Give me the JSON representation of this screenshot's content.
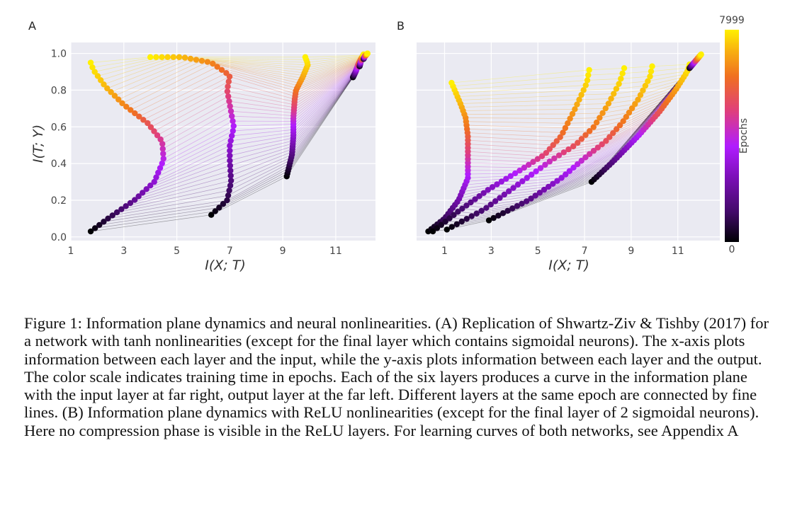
{
  "caption": "Figure 1: Information plane dynamics and neural nonlinearities. (A) Replication of Shwartz-Ziv & Tishby (2017) for a network with tanh nonlinearities (except for the final layer which contains sigmoidal neurons). The x-axis plots information between each layer and the input, while the y-axis plots information between each layer and the output. The color scale indicates training time in epochs. Each of the six layers produces a curve in the information plane with the input layer at far right, output layer at the far left. Different layers at the same epoch are connected by fine lines. (B) Information plane dynamics with ReLU nonlinearities (except for the final layer of 2 sigmoidal neurons). Here no compression phase is visible in the ReLU layers. For learning curves of both networks, see Appendix A",
  "colors": {
    "panel_bg": "#eaeaf2",
    "grid": "#ffffff",
    "cmap": [
      "#000004",
      "#420a68",
      "#7a0fb5",
      "#b01cff",
      "#e0407a",
      "#f07020",
      "#f8b010",
      "#fff000"
    ]
  },
  "chart_data": [
    {
      "panel": "A",
      "type": "scatter",
      "xlabel": "I(X; T)",
      "ylabel": "I(T; Y)",
      "xlim": [
        1,
        12.5
      ],
      "ylim": [
        -0.02,
        1.06
      ],
      "xticks": [
        1,
        3,
        5,
        7,
        9,
        11
      ],
      "yticks": [
        0.0,
        0.2,
        0.4,
        0.6,
        0.8,
        1.0
      ],
      "grid": true,
      "colorbar": "none",
      "series": [
        {
          "points": [
            [
              1.75,
              0.03
            ],
            [
              2.4,
              0.1
            ],
            [
              3.4,
              0.2
            ],
            [
              4.15,
              0.3
            ],
            [
              4.5,
              0.42
            ],
            [
              4.45,
              0.52
            ],
            [
              3.9,
              0.62
            ],
            [
              3.0,
              0.72
            ],
            [
              2.3,
              0.82
            ],
            [
              1.85,
              0.91
            ],
            [
              1.75,
              0.95
            ]
          ]
        },
        {
          "points": [
            [
              6.3,
              0.12
            ],
            [
              6.9,
              0.2
            ],
            [
              7.05,
              0.3
            ],
            [
              7.0,
              0.42
            ],
            [
              7.0,
              0.5
            ],
            [
              7.15,
              0.6
            ],
            [
              7.0,
              0.72
            ],
            [
              6.9,
              0.8
            ],
            [
              7.0,
              0.88
            ],
            [
              6.3,
              0.95
            ],
            [
              5.2,
              0.98
            ],
            [
              4.0,
              0.98
            ]
          ]
        },
        {
          "points": [
            [
              9.15,
              0.33
            ],
            [
              9.35,
              0.45
            ],
            [
              9.4,
              0.55
            ],
            [
              9.4,
              0.65
            ],
            [
              9.45,
              0.75
            ],
            [
              9.5,
              0.8
            ],
            [
              9.75,
              0.87
            ],
            [
              9.95,
              0.94
            ],
            [
              9.85,
              0.98
            ]
          ]
        },
        {
          "points": [
            [
              11.65,
              0.87
            ],
            [
              11.75,
              0.9
            ],
            [
              11.85,
              0.94
            ],
            [
              11.95,
              0.97
            ],
            [
              12.05,
              0.99
            ]
          ]
        },
        {
          "points": [
            [
              11.9,
              0.93
            ],
            [
              11.95,
              0.96
            ],
            [
              12.0,
              0.98
            ],
            [
              12.05,
              0.995
            ]
          ]
        },
        {
          "points": [
            [
              12.05,
              0.97
            ],
            [
              12.1,
              0.985
            ],
            [
              12.2,
              1.0
            ]
          ]
        }
      ]
    },
    {
      "panel": "B",
      "type": "scatter",
      "xlabel": "I(X; T)",
      "ylabel": "",
      "xlim": [
        -0.2,
        12.8
      ],
      "ylim": [
        -0.02,
        1.06
      ],
      "xticks": [
        1,
        3,
        5,
        7,
        9,
        11
      ],
      "yticks": [],
      "grid": true,
      "colorbar": "right",
      "series": [
        {
          "points": [
            [
              0.3,
              0.03
            ],
            [
              1.0,
              0.1
            ],
            [
              1.6,
              0.2
            ],
            [
              2.0,
              0.32
            ],
            [
              2.0,
              0.45
            ],
            [
              2.0,
              0.55
            ],
            [
              1.9,
              0.65
            ],
            [
              1.7,
              0.72
            ],
            [
              1.5,
              0.78
            ],
            [
              1.3,
              0.84
            ]
          ]
        },
        {
          "points": [
            [
              0.5,
              0.03
            ],
            [
              1.6,
              0.14
            ],
            [
              2.9,
              0.26
            ],
            [
              4.2,
              0.36
            ],
            [
              5.3,
              0.45
            ],
            [
              6.0,
              0.55
            ],
            [
              6.6,
              0.7
            ],
            [
              7.1,
              0.84
            ],
            [
              7.2,
              0.91
            ]
          ]
        },
        {
          "points": [
            [
              1.1,
              0.04
            ],
            [
              2.7,
              0.15
            ],
            [
              4.3,
              0.3
            ],
            [
              5.6,
              0.42
            ],
            [
              6.6,
              0.5
            ],
            [
              7.4,
              0.6
            ],
            [
              8.0,
              0.72
            ],
            [
              8.5,
              0.84
            ],
            [
              8.7,
              0.92
            ]
          ]
        },
        {
          "points": [
            [
              2.9,
              0.09
            ],
            [
              4.6,
              0.2
            ],
            [
              6.0,
              0.32
            ],
            [
              7.1,
              0.44
            ],
            [
              7.9,
              0.52
            ],
            [
              8.6,
              0.62
            ],
            [
              9.3,
              0.75
            ],
            [
              9.8,
              0.87
            ],
            [
              9.9,
              0.93
            ]
          ]
        },
        {
          "points": [
            [
              7.3,
              0.3
            ],
            [
              8.3,
              0.42
            ],
            [
              9.3,
              0.55
            ],
            [
              10.2,
              0.68
            ],
            [
              10.9,
              0.8
            ],
            [
              11.4,
              0.9
            ],
            [
              11.5,
              0.94
            ]
          ]
        },
        {
          "points": [
            [
              11.5,
              0.92
            ],
            [
              11.7,
              0.95
            ],
            [
              11.9,
              0.98
            ],
            [
              12.0,
              0.995
            ]
          ]
        }
      ],
      "colorbar_label": "Epochs",
      "colorbar_min": "0",
      "colorbar_max": "7999"
    }
  ]
}
